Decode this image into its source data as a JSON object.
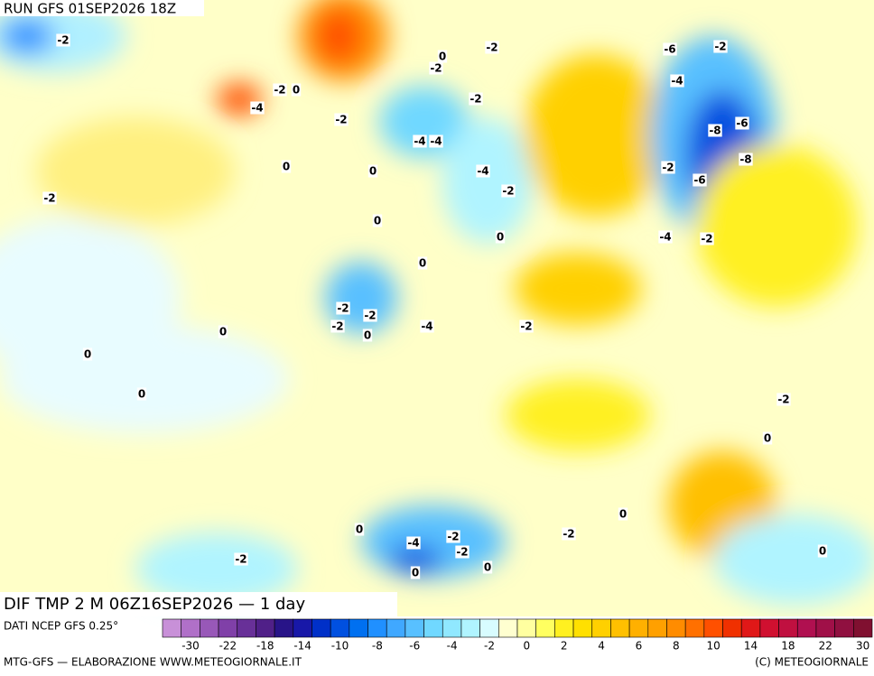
{
  "header": {
    "run": "RUN GFS 01SEP2026 18Z",
    "title": "DIF TMP 2 M 06Z16SEP2026 — 1 day"
  },
  "map": {
    "labels": [
      -2,
      -2,
      -2,
      0,
      -4,
      -2,
      -4,
      -4,
      -2,
      -2,
      0,
      -6,
      -2,
      -4,
      -8,
      -8,
      -6,
      -2,
      -6,
      -4,
      -2,
      0,
      0,
      -2,
      0,
      -4,
      -2,
      0,
      0,
      -2,
      0,
      -2,
      -2,
      -2,
      -4,
      -4,
      -2,
      -2,
      0,
      0,
      0,
      0,
      -2,
      0,
      0,
      -2,
      0,
      0,
      0,
      -2
    ]
  },
  "legend": {
    "source": "DATI NCEP GFS 0.25°",
    "colors": [
      "#c890d8",
      "#b070c8",
      "#9858b8",
      "#8040a8",
      "#683098",
      "#502088",
      "#281488",
      "#1818a8",
      "#0030c8",
      "#0050e0",
      "#0070f0",
      "#2090ff",
      "#40a8ff",
      "#58c0ff",
      "#70d8ff",
      "#90e8ff",
      "#b0f4ff",
      "#d8fcff",
      "#ffffd0",
      "#ffffa0",
      "#ffff60",
      "#fff020",
      "#ffe000",
      "#ffd000",
      "#ffc000",
      "#ffb000",
      "#ffa000",
      "#ff8c00",
      "#ff7000",
      "#ff5000",
      "#f03000",
      "#e01818",
      "#d01030",
      "#c01040",
      "#b01050",
      "#a01048",
      "#901040",
      "#801030"
    ],
    "ticks": [
      -30,
      -22,
      -18,
      -14,
      -10,
      -8,
      -6,
      -4,
      -2,
      0,
      2,
      4,
      6,
      8,
      10,
      14,
      18,
      22,
      30
    ]
  },
  "footer": {
    "left": "MTG-GFS — ELABORAZIONE WWW.METEOGIORNALE.IT",
    "right": "(C) METEOGIORNALE"
  }
}
